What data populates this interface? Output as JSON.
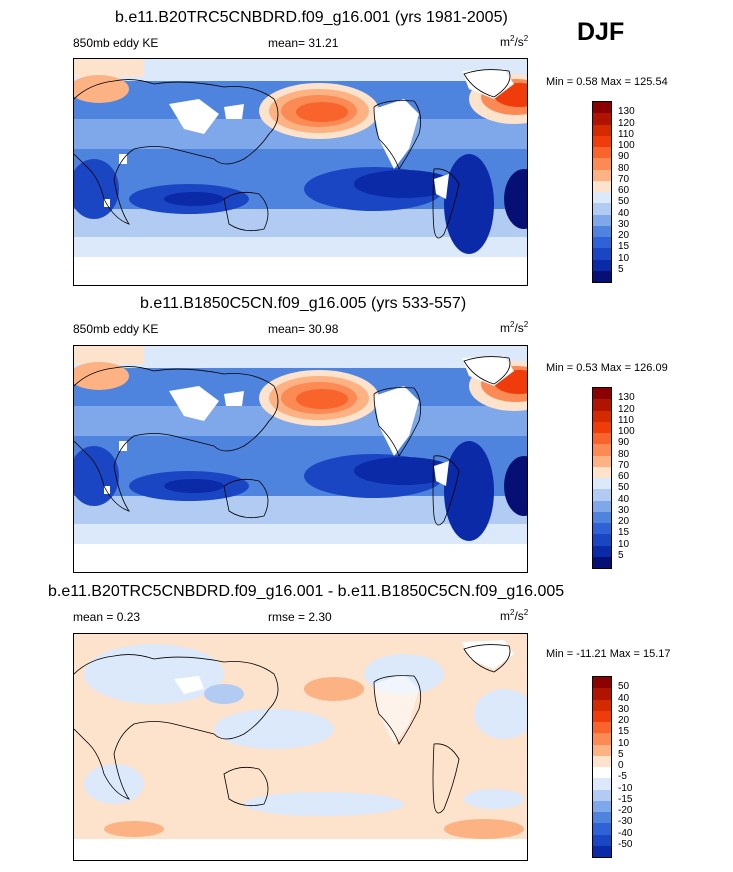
{
  "season": "DJF",
  "panels": [
    {
      "title": "b.e11.B20TRC5CNBDRD.f09_g16.001 (yrs 1981-2005)",
      "left_label": "850mb eddy KE",
      "center_label": "mean=  31.21",
      "units_base": "m",
      "units_mid": "/s",
      "units_sup": "2",
      "minmax": "Min =   0.58 Max = 125.54",
      "colorbar_ticks": [
        "130",
        "120",
        "110",
        "100",
        "90",
        "80",
        "70",
        "60",
        "50",
        "40",
        "30",
        "20",
        "15",
        "10",
        "5"
      ]
    },
    {
      "title": "b.e11.B1850C5CN.f09_g16.005 (yrs 533-557)",
      "left_label": "850mb eddy KE",
      "center_label": "mean=  30.98",
      "units_base": "m",
      "units_mid": "/s",
      "units_sup": "2",
      "minmax": "Min =   0.53 Max = 126.09",
      "colorbar_ticks": [
        "130",
        "120",
        "110",
        "100",
        "90",
        "80",
        "70",
        "60",
        "50",
        "40",
        "30",
        "20",
        "15",
        "10",
        "5"
      ]
    },
    {
      "title": "b.e11.B20TRC5CNBDRD.f09_g16.001 - b.e11.B1850C5CN.f09_g16.005",
      "left_label": "mean =   0.23",
      "center_label": "rmse =   2.30",
      "units_base": "m",
      "units_mid": "/s",
      "units_sup": "2",
      "minmax": "Min = -11.21 Max =  15.17",
      "colorbar_ticks": [
        "50",
        "40",
        "30",
        "20",
        "15",
        "10",
        "5",
        "0",
        "-5",
        "-10",
        "-15",
        "-20",
        "-30",
        "-40",
        "-50"
      ]
    }
  ],
  "colors": {
    "seq_scale": [
      "#8b0000",
      "#b01400",
      "#d42a00",
      "#f03c0a",
      "#f8642c",
      "#fb8a55",
      "#fdb283",
      "#fde2cc",
      "#dce9fa",
      "#b1cbf2",
      "#7ea8ea",
      "#4f84de",
      "#2f62d6",
      "#1a46c4",
      "#0a2aa8",
      "#050f74"
    ],
    "diff_scale": [
      "#8b0000",
      "#b01400",
      "#d42a00",
      "#f03c0a",
      "#f8642c",
      "#fb8a55",
      "#fdb283",
      "#fde2cc",
      "#ffffff",
      "#dce9fa",
      "#b1cbf2",
      "#7ea8ea",
      "#4f84de",
      "#2f62d6",
      "#1a46c4",
      "#0a2aa8",
      "#050f74"
    ]
  },
  "chart_data": [
    {
      "type": "heatmap",
      "title": "b.e11.B20TRC5CNBDRD.f09_g16.001 (yrs 1981-2005)",
      "variable": "850mb eddy KE",
      "units": "m2/s2",
      "mean": 31.21,
      "min": 0.58,
      "max": 125.54,
      "levels": [
        5,
        10,
        15,
        20,
        30,
        40,
        50,
        60,
        70,
        80,
        90,
        100,
        110,
        120,
        130
      ]
    },
    {
      "type": "heatmap",
      "title": "b.e11.B1850C5CN.f09_g16.005 (yrs 533-557)",
      "variable": "850mb eddy KE",
      "units": "m2/s2",
      "mean": 30.98,
      "min": 0.53,
      "max": 126.09,
      "levels": [
        5,
        10,
        15,
        20,
        30,
        40,
        50,
        60,
        70,
        80,
        90,
        100,
        110,
        120,
        130
      ]
    },
    {
      "type": "heatmap",
      "title": "b.e11.B20TRC5CNBDRD.f09_g16.001 - b.e11.B1850C5CN.f09_g16.005",
      "units": "m2/s2",
      "mean": 0.23,
      "rmse": 2.3,
      "min": -11.21,
      "max": 15.17,
      "levels": [
        -50,
        -40,
        -30,
        -20,
        -15,
        -10,
        -5,
        0,
        5,
        10,
        15,
        20,
        30,
        40,
        50
      ]
    }
  ]
}
